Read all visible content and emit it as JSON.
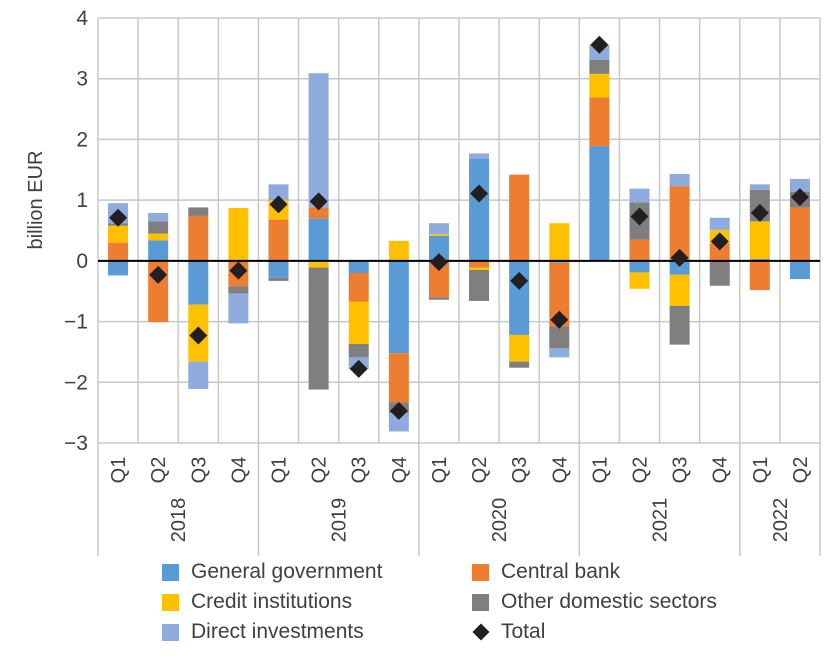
{
  "chart_data": {
    "type": "bar",
    "stacked": true,
    "title": "",
    "xlabel": "",
    "ylabel": "billion EUR",
    "ylim": [
      -3,
      4
    ],
    "yticks": [
      4,
      3,
      2,
      1,
      0,
      -1,
      -2,
      -3
    ],
    "ytick_labels": [
      "4",
      "3",
      "2",
      "1",
      "0",
      "−1",
      "−2",
      "−3"
    ],
    "grid": true,
    "categories": [
      "Q1",
      "Q2",
      "Q3",
      "Q4",
      "Q1",
      "Q2",
      "Q3",
      "Q4",
      "Q1",
      "Q2",
      "Q3",
      "Q4",
      "Q1",
      "Q2",
      "Q3",
      "Q4",
      "Q1",
      "Q2"
    ],
    "groups": [
      {
        "label": "2018",
        "count": 4
      },
      {
        "label": "2019",
        "count": 4
      },
      {
        "label": "2020",
        "count": 4
      },
      {
        "label": "2021",
        "count": 4
      },
      {
        "label": "2022",
        "count": 2
      }
    ],
    "series": [
      {
        "name": "General government",
        "color": "#5b9bd5",
        "values": [
          -0.24,
          0.34,
          -0.72,
          0.0,
          -0.28,
          0.7,
          -0.2,
          -1.52,
          0.41,
          1.69,
          -1.22,
          -0.03,
          1.89,
          -0.19,
          -0.23,
          0.0,
          0.03,
          -0.3
        ]
      },
      {
        "name": "Central bank",
        "color": "#ed7d31",
        "values": [
          0.3,
          -1.01,
          0.74,
          -0.42,
          0.68,
          0.18,
          -0.47,
          -0.81,
          -0.6,
          -0.11,
          1.42,
          -1.05,
          0.8,
          0.35,
          1.23,
          0.29,
          -0.48,
          0.88
        ]
      },
      {
        "name": "Credit institutions",
        "color": "#ffc000",
        "values": [
          0.28,
          0.11,
          -0.94,
          0.87,
          0.32,
          -0.11,
          -0.7,
          0.33,
          0.03,
          -0.04,
          -0.44,
          0.62,
          0.39,
          -0.27,
          -0.51,
          0.22,
          0.62,
          0.0
        ]
      },
      {
        "name": "Other domestic sectors",
        "color": "#7f7f7f",
        "values": [
          0.04,
          0.2,
          0.14,
          -0.12,
          -0.05,
          -2.01,
          -0.22,
          -0.18,
          -0.04,
          -0.51,
          -0.1,
          -0.36,
          0.23,
          0.61,
          -0.64,
          -0.41,
          0.52,
          0.26
        ]
      },
      {
        "name": "Direct investments",
        "color": "#8faadc",
        "values": [
          0.33,
          0.14,
          -0.45,
          -0.49,
          0.26,
          2.21,
          -0.19,
          -0.3,
          0.18,
          0.08,
          0.0,
          -0.15,
          0.25,
          0.23,
          0.2,
          0.2,
          0.09,
          0.21
        ]
      }
    ],
    "total": {
      "name": "Total",
      "color": "#231f20",
      "values": [
        0.71,
        -0.23,
        -1.23,
        -0.16,
        0.93,
        0.98,
        -1.78,
        -2.47,
        -0.02,
        1.11,
        -0.33,
        -0.97,
        3.56,
        0.73,
        0.05,
        0.32,
        0.79,
        1.05
      ]
    },
    "legend": {
      "position": "bottom",
      "items": [
        {
          "label": "General government",
          "color": "#5b9bd5",
          "marker": "square"
        },
        {
          "label": "Central bank",
          "color": "#ed7d31",
          "marker": "square"
        },
        {
          "label": "Credit institutions",
          "color": "#ffc000",
          "marker": "square"
        },
        {
          "label": "Other domestic sectors",
          "color": "#7f7f7f",
          "marker": "square"
        },
        {
          "label": "Direct investments",
          "color": "#8faadc",
          "marker": "square"
        },
        {
          "label": "Total",
          "color": "#231f20",
          "marker": "diamond"
        }
      ]
    }
  }
}
